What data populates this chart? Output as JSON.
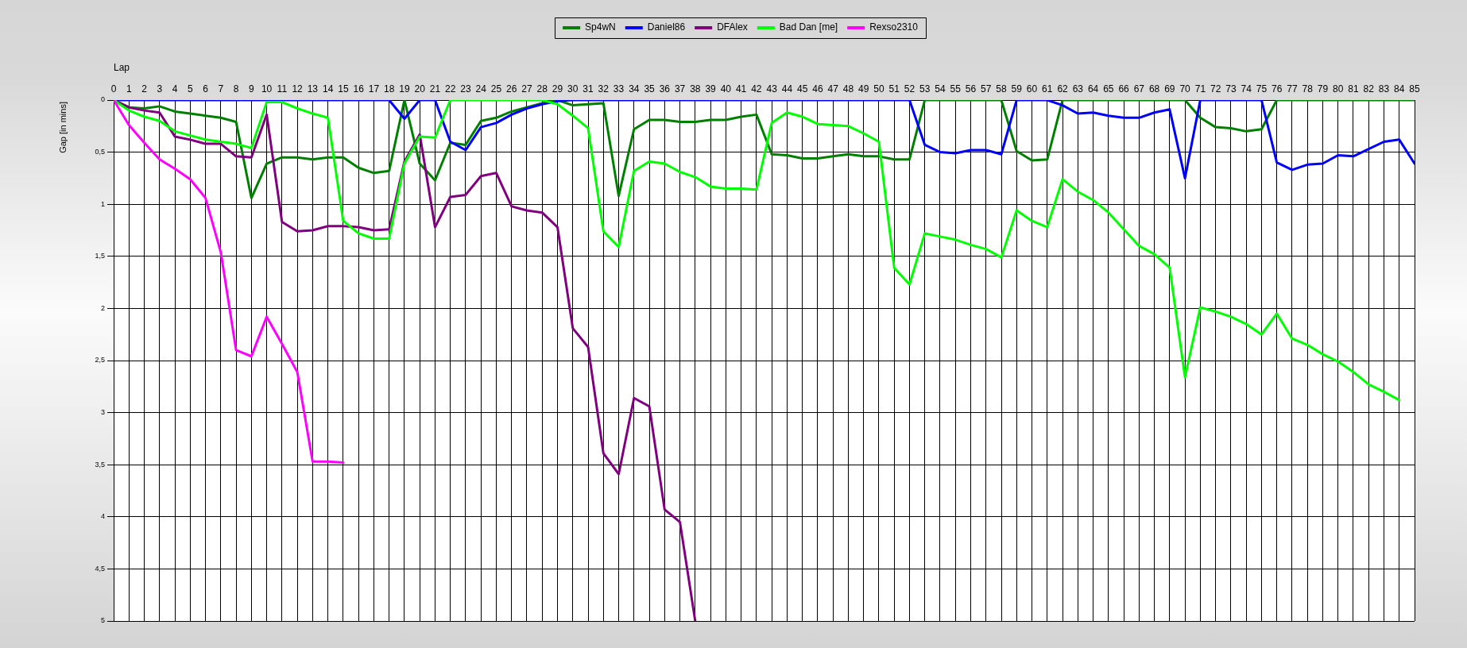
{
  "chart_data": {
    "type": "line",
    "xlabel": "Lap",
    "ylabel": "Gap [in mins]",
    "legend": "top",
    "grid": true,
    "x": [
      0,
      1,
      2,
      3,
      4,
      5,
      6,
      7,
      8,
      9,
      10,
      11,
      12,
      13,
      14,
      15,
      16,
      17,
      18,
      19,
      20,
      21,
      22,
      23,
      24,
      25,
      26,
      27,
      28,
      29,
      30,
      31,
      32,
      33,
      34,
      35,
      36,
      37,
      38,
      39,
      40,
      41,
      42,
      43,
      44,
      45,
      46,
      47,
      48,
      49,
      50,
      51,
      52,
      53,
      54,
      55,
      56,
      57,
      58,
      59,
      60,
      61,
      62,
      63,
      64,
      65,
      66,
      67,
      68,
      69,
      70,
      71,
      72,
      73,
      74,
      75,
      76,
      77,
      78,
      79,
      80,
      81,
      82,
      83,
      84,
      85
    ],
    "xlim": [
      0,
      85
    ],
    "xticks": [
      0,
      1,
      2,
      3,
      4,
      5,
      6,
      7,
      8,
      9,
      10,
      11,
      12,
      13,
      14,
      15,
      16,
      17,
      18,
      19,
      20,
      21,
      22,
      23,
      24,
      25,
      26,
      27,
      28,
      29,
      30,
      31,
      32,
      33,
      34,
      35,
      36,
      37,
      38,
      39,
      40,
      41,
      42,
      43,
      44,
      45,
      46,
      47,
      48,
      49,
      50,
      51,
      52,
      53,
      54,
      55,
      56,
      57,
      58,
      59,
      60,
      61,
      62,
      63,
      64,
      65,
      66,
      67,
      68,
      69,
      70,
      71,
      72,
      73,
      74,
      75,
      76,
      77,
      78,
      79,
      80,
      81,
      82,
      83,
      84,
      85
    ],
    "ylim": [
      5,
      0
    ],
    "yticks": [
      0,
      {
        "value": 0.5,
        "label": "0,5"
      },
      1,
      {
        "value": 1.5,
        "label": "1,5"
      },
      2,
      {
        "value": 2.5,
        "label": "2,5"
      },
      3,
      {
        "value": 3.5,
        "label": "3,5"
      },
      4,
      {
        "value": 4.5,
        "label": "4,5"
      },
      5
    ],
    "series": [
      {
        "name": "Sp4wN",
        "color": "#008000",
        "values": [
          0,
          0.07,
          0.08,
          0.06,
          0.11,
          0.13,
          0.15,
          0.17,
          0.21,
          0.94,
          0.61,
          0.55,
          0.55,
          0.57,
          0.55,
          0.55,
          0.65,
          0.7,
          0.68,
          0,
          0.61,
          0.77,
          0.41,
          0.43,
          0.2,
          0.17,
          0.11,
          0.07,
          0.03,
          0,
          0.05,
          0.04,
          0.03,
          0.92,
          0.28,
          0.19,
          0.19,
          0.21,
          0.21,
          0.19,
          0.19,
          0.16,
          0.14,
          0.52,
          0.53,
          0.56,
          0.56,
          0.54,
          0.52,
          0.54,
          0.54,
          0.57,
          0.57,
          0,
          0,
          0,
          0,
          0,
          0,
          0.49,
          0.58,
          0.57,
          0,
          0,
          0,
          0,
          0,
          0,
          0,
          0,
          0,
          0.17,
          0.26,
          0.27,
          0.3,
          0.28,
          0,
          0,
          0,
          0,
          0,
          0,
          0,
          0,
          0,
          0
        ]
      },
      {
        "name": "Daniel86",
        "color": "#0000ff",
        "values": [
          0,
          0,
          0,
          0,
          0,
          0,
          0,
          0,
          0,
          0,
          0,
          0,
          0,
          0,
          0,
          0,
          0,
          0,
          0,
          0.18,
          0,
          0,
          0.4,
          0.48,
          0.26,
          0.22,
          0.14,
          0.08,
          0.04,
          0.01,
          0,
          0,
          0,
          0,
          0,
          0,
          0,
          0,
          0,
          0,
          0,
          0,
          0,
          0,
          0,
          0,
          0,
          0,
          0,
          0,
          0,
          0,
          0,
          0.43,
          0.5,
          0.51,
          0.48,
          0.48,
          0.52,
          0,
          0,
          0,
          0.05,
          0.13,
          0.12,
          0.15,
          0.17,
          0.17,
          0.12,
          0.09,
          0.75,
          0,
          0,
          0,
          0,
          0,
          0.6,
          0.67,
          0.62,
          0.61,
          0.53,
          0.54,
          0.47,
          0.4,
          0.38,
          0.61
        ]
      },
      {
        "name": "DFAlex",
        "color": "#800080",
        "values": [
          0,
          0.07,
          0.1,
          0.12,
          0.35,
          0.38,
          0.42,
          0.42,
          0.54,
          0.55,
          0.14,
          1.17,
          1.26,
          1.25,
          1.21,
          1.21,
          1.22,
          1.25,
          1.24,
          0.59,
          0.33,
          1.22,
          0.93,
          0.91,
          0.73,
          0.7,
          1.02,
          1.06,
          1.08,
          1.22,
          2.19,
          2.37,
          3.39,
          3.59,
          2.86,
          2.94,
          3.93,
          4.05,
          5,
          null,
          null,
          null,
          null,
          null,
          null,
          null,
          null,
          null,
          null,
          null,
          null,
          null,
          null,
          null,
          null,
          null,
          null,
          null,
          null,
          null,
          null,
          null,
          null,
          null,
          null,
          null,
          null,
          null,
          null,
          null,
          null,
          null,
          null,
          null,
          null,
          null,
          null,
          null,
          null,
          null,
          null,
          null,
          null,
          null,
          null,
          null
        ]
      },
      {
        "name": "Bad Dan [me]",
        "color": "#00ff00",
        "values": [
          0,
          0.1,
          0.16,
          0.2,
          0.3,
          0.34,
          0.38,
          0.4,
          0.42,
          0.46,
          0.02,
          0.02,
          0.08,
          0.13,
          0.17,
          1.16,
          1.28,
          1.33,
          1.33,
          0.61,
          0.35,
          0.36,
          0,
          0,
          0,
          0,
          0,
          0,
          0,
          0.04,
          0.15,
          0.27,
          1.26,
          1.41,
          0.68,
          0.59,
          0.61,
          0.69,
          0.74,
          0.83,
          0.85,
          0.85,
          0.86,
          0.22,
          0.12,
          0.16,
          0.23,
          0.24,
          0.25,
          0.32,
          0.4,
          1.61,
          1.77,
          1.28,
          1.31,
          1.34,
          1.39,
          1.43,
          1.51,
          1.06,
          1.16,
          1.22,
          0.76,
          0.88,
          0.96,
          1.08,
          1.24,
          1.4,
          1.48,
          1.61,
          2.66,
          1.99,
          2.03,
          2.08,
          2.15,
          2.25,
          2.05,
          2.29,
          2.35,
          2.44,
          2.51,
          2.61,
          2.73,
          2.8,
          2.88,
          null
        ]
      },
      {
        "name": "Rexso2310",
        "color": "#ff00ff",
        "values": [
          0,
          0.24,
          0.41,
          0.57,
          0.66,
          0.76,
          0.94,
          1.46,
          2.4,
          2.46,
          2.08,
          2.34,
          2.61,
          3.47,
          3.47,
          3.48,
          null,
          null,
          null,
          null,
          null,
          null,
          null,
          null,
          null,
          null,
          null,
          null,
          null,
          null,
          null,
          null,
          null,
          null,
          null,
          null,
          null,
          null,
          null,
          null,
          null,
          null,
          null,
          null,
          null,
          null,
          null,
          null,
          null,
          null,
          null,
          null,
          null,
          null,
          null,
          null,
          null,
          null,
          null,
          null,
          null,
          null,
          null,
          null,
          null,
          null,
          null,
          null,
          null,
          null,
          null,
          null,
          null,
          null,
          null,
          null,
          null,
          null,
          null,
          null,
          null,
          null,
          null,
          null,
          null,
          null
        ]
      }
    ]
  }
}
